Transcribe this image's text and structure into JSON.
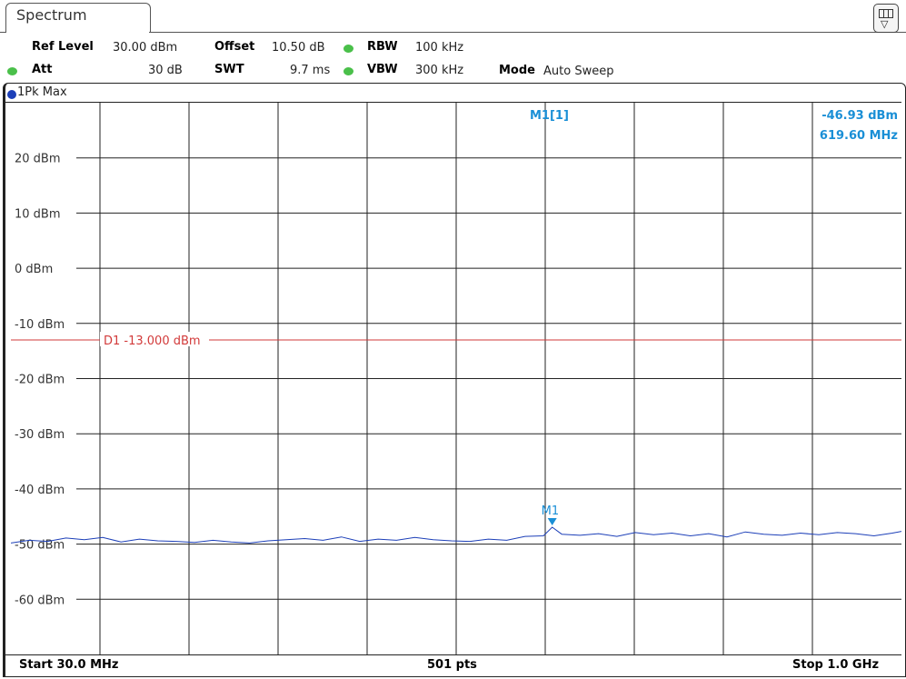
{
  "tab": {
    "label": "Spectrum"
  },
  "settings": {
    "ref_level_label": "Ref Level",
    "ref_level_value": "30.00 dBm",
    "offset_label": "Offset",
    "offset_value": "10.50 dB",
    "rbw_label": "RBW",
    "rbw_value": "100 kHz",
    "att_label": "Att",
    "att_value": "30 dB",
    "swt_label": "SWT",
    "swt_value": "9.7 ms",
    "vbw_label": "VBW",
    "vbw_value": "300 kHz",
    "mode_label": "Mode",
    "mode_value": "Auto Sweep"
  },
  "trace": {
    "label": "1Pk Max"
  },
  "marker_info": {
    "name": "M1[1]",
    "level": "-46.93 dBm",
    "freq": "619.60 MHz"
  },
  "footer": {
    "start": "Start 30.0 MHz",
    "points": "501 pts",
    "stop": "Stop 1.0 GHz"
  },
  "colors": {
    "trace": "#1c3fb8",
    "display_line": "#d23a3a",
    "marker": "#1a8fd6",
    "grid": "#222222",
    "status_dot": "#4ac04a"
  },
  "icons": {
    "menu": "softkey-menu-icon"
  },
  "chart_data": {
    "type": "line",
    "x_unit": "MHz",
    "y_unit": "dBm",
    "xlim": [
      30.0,
      1000.0
    ],
    "ylim": [
      -70,
      30
    ],
    "y_ticks": [
      20,
      10,
      0,
      -10,
      -20,
      -30,
      -40,
      -50,
      -60
    ],
    "y_tick_labels": [
      "20 dBm",
      "10 dBm",
      "0 dBm",
      "-10 dBm",
      "-20 dBm",
      "-30 dBm",
      "-40 dBm",
      "-50 dBm",
      "-60 dBm"
    ],
    "grid": true,
    "display_line": {
      "label": "D1  -13.000 dBm",
      "value": -13.0
    },
    "marker": {
      "label": "M1",
      "x": 619.6,
      "y": -46.93
    },
    "series": [
      {
        "x": [
          30,
          50,
          70,
          90,
          110,
          130,
          150,
          170,
          190,
          210,
          230,
          250,
          270,
          290,
          310,
          330,
          350,
          370,
          390,
          410,
          430,
          450,
          470,
          490,
          510,
          530,
          550,
          570,
          590,
          610,
          619.6,
          630,
          650,
          670,
          690,
          710,
          730,
          750,
          770,
          790,
          810,
          830,
          850,
          870,
          890,
          910,
          930,
          950,
          970,
          990,
          1000
        ],
        "y": [
          -49.8,
          -49.3,
          -49.5,
          -48.9,
          -49.2,
          -48.8,
          -49.6,
          -49.1,
          -49.4,
          -49.5,
          -49.7,
          -49.3,
          -49.6,
          -49.8,
          -49.4,
          -49.2,
          -49.0,
          -49.3,
          -48.7,
          -49.5,
          -49.1,
          -49.3,
          -48.8,
          -49.2,
          -49.4,
          -49.5,
          -49.1,
          -49.3,
          -48.6,
          -48.5,
          -46.93,
          -48.2,
          -48.4,
          -48.1,
          -48.6,
          -47.9,
          -48.3,
          -48.0,
          -48.5,
          -48.1,
          -48.7,
          -47.8,
          -48.2,
          -48.4,
          -48.0,
          -48.3,
          -47.9,
          -48.1,
          -48.5,
          -48.0,
          -47.7
        ]
      }
    ]
  }
}
